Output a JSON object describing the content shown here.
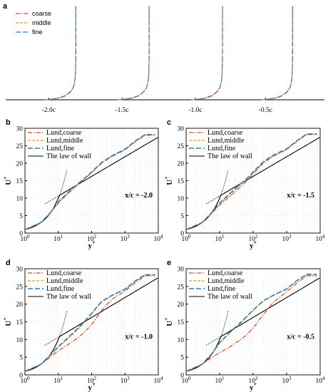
{
  "colors": {
    "coarse": "#d9431f",
    "middle": "#f29a18",
    "fine": "#2a7ec2",
    "law": "#000000",
    "grid": "#dcdcdc"
  },
  "chart_data": [
    {
      "panel": "a",
      "type": "line",
      "legend": [
        "coarse",
        "middle",
        "fine"
      ],
      "legend_position": "top-left",
      "x_tick_labels": [
        "-2.0c",
        "-1.5c",
        "-1.0c",
        "-0.5c"
      ],
      "stations": [
        {
          "name": "-2.0c",
          "ax_pct": 0.22
        },
        {
          "name": "-1.5c",
          "ax_pct": 0.45
        },
        {
          "name": "-1.0c",
          "ax_pct": 0.68
        },
        {
          "name": "-0.5c",
          "ax_pct": 0.9
        }
      ],
      "profile": {
        "height_fraction": [
          0.0,
          0.01,
          0.02,
          0.04,
          0.06,
          0.08,
          0.1,
          0.13,
          0.17,
          0.22,
          0.3,
          0.45,
          0.7,
          1.0
        ],
        "velocity_fraction": [
          0.0,
          0.25,
          0.45,
          0.62,
          0.72,
          0.8,
          0.86,
          0.91,
          0.95,
          0.975,
          0.99,
          1.0,
          1.0,
          1.0
        ]
      }
    },
    {
      "panel": "b",
      "type": "line",
      "xscale": "log",
      "xlim": [
        1,
        10000
      ],
      "ylim": [
        0,
        30
      ],
      "x_ticks": [
        1,
        10,
        100,
        1000,
        10000
      ],
      "x_tick_labels": [
        "10",
        "10",
        "10",
        "10",
        "10"
      ],
      "x_tick_exponents": [
        "0",
        "1",
        "2",
        "3",
        "4"
      ],
      "y_ticks": [
        0,
        5,
        10,
        15,
        20,
        25,
        30
      ],
      "xlabel": "y",
      "xlabel_sup": "+",
      "ylabel": "U",
      "ylabel_sup": "+",
      "grid": true,
      "legend_position": "top-left",
      "annotation": "x/c = -2.0",
      "series": [
        {
          "name": "Lund,coarse",
          "style": "dashdot",
          "x": [
            1,
            3,
            6,
            10,
            20,
            40,
            60,
            100,
            200,
            400,
            1000,
            2000,
            4000,
            8000
          ],
          "y": [
            1,
            3,
            6,
            8.6,
            11.4,
            14.0,
            15.4,
            17.3,
            20.0,
            21.9,
            23.8,
            26.1,
            28.0,
            28.0
          ]
        },
        {
          "name": "Lund,middle",
          "style": "dashdot",
          "x": [
            1,
            3,
            6,
            10,
            20,
            40,
            60,
            100,
            200,
            400,
            1000,
            2000,
            4000,
            8000
          ],
          "y": [
            1,
            3,
            6,
            8.8,
            11.6,
            14.1,
            15.5,
            17.4,
            20.1,
            22.0,
            23.9,
            26.2,
            28.1,
            28.1
          ]
        },
        {
          "name": "Lund,fine",
          "style": "dashed",
          "x": [
            1,
            3,
            6,
            10,
            20,
            40,
            60,
            100,
            200,
            400,
            1000,
            2000,
            4000,
            8000
          ],
          "y": [
            1,
            3,
            6,
            8.9,
            11.7,
            14.2,
            15.6,
            17.5,
            20.2,
            22.1,
            24.0,
            26.3,
            28.2,
            28.2
          ]
        }
      ]
    },
    {
      "panel": "c",
      "type": "line",
      "xscale": "log",
      "xlim": [
        1,
        10000
      ],
      "ylim": [
        0,
        30
      ],
      "x_ticks": [
        1,
        10,
        100,
        1000,
        10000
      ],
      "x_tick_labels": [
        "10",
        "10",
        "10",
        "10",
        "10"
      ],
      "x_tick_exponents": [
        "0",
        "1",
        "2",
        "3",
        "4"
      ],
      "y_ticks": [
        0,
        5,
        10,
        15,
        20,
        25,
        30
      ],
      "xlabel": "y",
      "xlabel_sup": "+",
      "ylabel": "U",
      "ylabel_sup": "+",
      "grid": true,
      "legend_position": "top-left",
      "annotation": "x/c = -1.5",
      "series": [
        {
          "name": "Lund,coarse",
          "style": "dashdot",
          "x": [
            1,
            3,
            6,
            10,
            20,
            40,
            60,
            100,
            200,
            400,
            1000,
            2000,
            4000,
            8000
          ],
          "y": [
            1,
            3,
            5.8,
            8.0,
            10.5,
            13.0,
            14.6,
            16.9,
            20.0,
            22.0,
            23.9,
            26.2,
            28.2,
            28.2
          ]
        },
        {
          "name": "Lund,middle",
          "style": "dashdot",
          "x": [
            1,
            3,
            6,
            10,
            20,
            40,
            60,
            100,
            200,
            400,
            1000,
            2000,
            4000,
            8000
          ],
          "y": [
            1,
            3,
            5.9,
            8.4,
            11.0,
            13.6,
            15.1,
            17.3,
            20.3,
            22.2,
            24.0,
            26.3,
            28.3,
            28.3
          ]
        },
        {
          "name": "Lund,fine",
          "style": "dashed",
          "x": [
            1,
            3,
            6,
            10,
            20,
            40,
            60,
            100,
            200,
            400,
            1000,
            2000,
            4000,
            8000
          ],
          "y": [
            1,
            3,
            6.0,
            8.6,
            11.3,
            13.9,
            15.3,
            17.5,
            20.4,
            22.3,
            24.1,
            26.4,
            28.4,
            28.4
          ]
        }
      ]
    },
    {
      "panel": "d",
      "type": "line",
      "xscale": "log",
      "xlim": [
        1,
        10000
      ],
      "ylim": [
        0,
        30
      ],
      "x_ticks": [
        1,
        10,
        100,
        1000,
        10000
      ],
      "x_tick_labels": [
        "10",
        "10",
        "10",
        "10",
        "10"
      ],
      "x_tick_exponents": [
        "0",
        "1",
        "2",
        "3",
        "4"
      ],
      "y_ticks": [
        0,
        5,
        10,
        15,
        20,
        25,
        30
      ],
      "xlabel": "y",
      "xlabel_sup": "+",
      "ylabel": "U",
      "ylabel_sup": "+",
      "grid": true,
      "legend_position": "top-left",
      "annotation": "x/c = -1.0",
      "series": [
        {
          "name": "Lund,coarse",
          "style": "dashdot",
          "x": [
            1,
            3,
            6,
            10,
            20,
            40,
            60,
            100,
            200,
            400,
            1000,
            2000,
            4000,
            8000
          ],
          "y": [
            1,
            3,
            5.2,
            6.8,
            8.6,
            10.6,
            12.0,
            14.2,
            18.2,
            21.3,
            23.7,
            26.0,
            28.0,
            28.0
          ]
        },
        {
          "name": "Lund,middle",
          "style": "dashdot",
          "x": [
            1,
            3,
            6,
            10,
            20,
            40,
            60,
            100,
            200,
            400,
            1000,
            2000,
            4000,
            8000
          ],
          "y": [
            1,
            3,
            5.7,
            7.8,
            10.3,
            13.0,
            14.7,
            17.2,
            20.6,
            22.3,
            24.1,
            26.4,
            28.2,
            28.2
          ]
        },
        {
          "name": "Lund,fine",
          "style": "dashed",
          "x": [
            1,
            3,
            6,
            10,
            20,
            40,
            60,
            100,
            200,
            400,
            1000,
            2000,
            4000,
            8000
          ],
          "y": [
            1,
            3,
            5.8,
            8.0,
            10.6,
            13.3,
            15.0,
            17.4,
            20.8,
            22.4,
            24.2,
            26.5,
            28.3,
            28.3
          ]
        }
      ]
    },
    {
      "panel": "e",
      "type": "line",
      "xscale": "log",
      "xlim": [
        1,
        10000
      ],
      "ylim": [
        0,
        30
      ],
      "x_ticks": [
        1,
        10,
        100,
        1000,
        10000
      ],
      "x_tick_labels": [
        "10",
        "10",
        "10",
        "10",
        "10"
      ],
      "x_tick_exponents": [
        "0",
        "1",
        "2",
        "3",
        "4"
      ],
      "y_ticks": [
        0,
        5,
        10,
        15,
        20,
        25,
        30
      ],
      "xlabel": "y",
      "xlabel_sup": "+",
      "ylabel": "U",
      "ylabel_sup": "+",
      "grid": true,
      "legend_position": "top-left",
      "annotation": "x/c = -0.5",
      "series": [
        {
          "name": "Lund,coarse",
          "style": "dashdot",
          "x": [
            1,
            3,
            6,
            10,
            20,
            40,
            60,
            100,
            200,
            400,
            1000,
            2000,
            4000,
            8000
          ],
          "y": [
            1,
            3,
            5.0,
            6.3,
            7.9,
            9.8,
            11.1,
            13.2,
            17.0,
            20.5,
            23.5,
            25.9,
            28.0,
            28.0
          ]
        },
        {
          "name": "Lund,middle",
          "style": "dashdot",
          "x": [
            1,
            3,
            6,
            10,
            20,
            40,
            60,
            100,
            200,
            400,
            1000,
            2000,
            4000,
            8000
          ],
          "y": [
            1,
            3,
            6.0,
            8.9,
            11.8,
            14.4,
            16.0,
            18.2,
            20.8,
            22.4,
            24.2,
            26.5,
            28.3,
            28.3
          ]
        },
        {
          "name": "Lund,fine",
          "style": "dashed",
          "x": [
            1,
            3,
            6,
            10,
            20,
            40,
            60,
            100,
            200,
            400,
            1000,
            2000,
            4000,
            8000
          ],
          "y": [
            1,
            3,
            6.1,
            9.1,
            12.0,
            14.6,
            16.2,
            18.3,
            20.9,
            22.5,
            24.3,
            26.6,
            28.4,
            28.4
          ]
        }
      ]
    }
  ],
  "law_of_wall": {
    "name": "The law of wall",
    "viscous_sublayer": "U+ = y+",
    "log_law": "U+ = ln(y+)/0.41 + 5.0",
    "dotted_viscous_range": [
      4,
      18
    ],
    "dotted_log_range": [
      4,
      60
    ]
  }
}
